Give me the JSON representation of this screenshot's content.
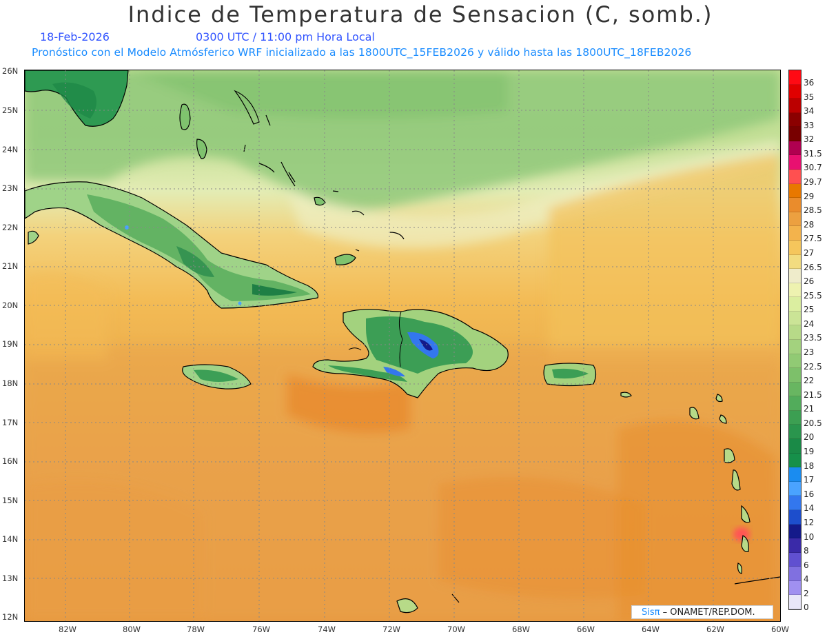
{
  "title": "Indice de Temperatura de Sensacion (C, somb.)",
  "date": "18-Feb-2026",
  "time": "0300 UTC / 11:00 pm Hora Local",
  "subtitle": "Pronóstico con el Modelo Atmósferico WRF inicializado a las 1800UTC_15FEB2026 y válido hasta las  1800UTC_18FEB2026",
  "lat_labels": [
    "26N",
    "25N",
    "24N",
    "23N",
    "22N",
    "21N",
    "20N",
    "19N",
    "18N",
    "17N",
    "16N",
    "15N",
    "14N",
    "13N",
    "12N"
  ],
  "lon_labels": [
    "82W",
    "80W",
    "78W",
    "76W",
    "74W",
    "72W",
    "70W",
    "68W",
    "66W",
    "64W",
    "62W",
    "60W"
  ],
  "colorbar": {
    "levels": [
      "36",
      "35",
      "34",
      "33",
      "32",
      "31.5",
      "30.7",
      "29.7",
      "29",
      "28.5",
      "28",
      "27.5",
      "27",
      "26.5",
      "26",
      "25.5",
      "25",
      "24",
      "23.5",
      "23",
      "22.5",
      "22",
      "21.5",
      "21",
      "20.5",
      "20",
      "19",
      "18",
      "17",
      "16",
      "14",
      "12",
      "10",
      "8",
      "6",
      "4",
      "2",
      "0"
    ],
    "colors": [
      "#ff0a14",
      "#e00000",
      "#bb0000",
      "#8b0000",
      "#780000",
      "#b00050",
      "#e81070",
      "#ff5050",
      "#e87800",
      "#ea8c2c",
      "#eca040",
      "#f3b34c",
      "#f5c65c",
      "#f2dc80",
      "#efeccb",
      "#eef2b0",
      "#dbeea0",
      "#cbe496",
      "#b7da88",
      "#a3d27e",
      "#91ca74",
      "#7dc06a",
      "#68b661",
      "#52ac5b",
      "#3c9f52",
      "#2a954d",
      "#1a8a47",
      "#16904a",
      "#1a8cf0",
      "#4aa3ff",
      "#3377ee",
      "#1d4ecc",
      "#141a8a",
      "#3a2aa8",
      "#6050d0",
      "#8070e0",
      "#a090f0",
      "#e8e6f8"
    ]
  },
  "credit": {
    "logo": "Sisπ",
    "text": " – ONAMET/REP.DOM."
  }
}
